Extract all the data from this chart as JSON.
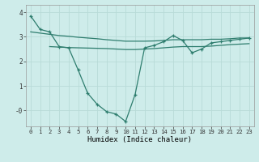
{
  "title": "",
  "xlabel": "Humidex (Indice chaleur)",
  "ylabel": "",
  "bg_color": "#ceecea",
  "grid_color": "#b8dbd8",
  "line_color": "#2e7d6e",
  "xlim": [
    -0.5,
    23.5
  ],
  "ylim": [
    -0.65,
    4.3
  ],
  "xticks": [
    0,
    1,
    2,
    3,
    4,
    5,
    6,
    7,
    8,
    9,
    10,
    11,
    12,
    13,
    14,
    15,
    16,
    17,
    18,
    19,
    20,
    21,
    22,
    23
  ],
  "yticks": [
    0,
    1,
    2,
    3,
    4
  ],
  "ytick_labels": [
    "-0",
    "1",
    "2",
    "3",
    "4"
  ],
  "line1_x": [
    0,
    1,
    2,
    3,
    4,
    5,
    6,
    7,
    8,
    9,
    10,
    11,
    12,
    13,
    14,
    15,
    16,
    17,
    18,
    19,
    20,
    21,
    22,
    23
  ],
  "line1_y": [
    3.85,
    3.3,
    3.2,
    2.6,
    2.55,
    1.65,
    0.7,
    0.25,
    -0.05,
    -0.15,
    -0.45,
    0.65,
    2.55,
    2.65,
    2.8,
    3.05,
    2.85,
    2.35,
    2.5,
    2.75,
    2.8,
    2.85,
    2.9,
    2.95
  ],
  "line2_x": [
    0,
    1,
    2,
    3,
    4,
    5,
    6,
    7,
    8,
    9,
    10,
    11,
    12,
    13,
    14,
    15,
    16,
    17,
    18,
    19,
    20,
    21,
    22,
    23
  ],
  "line2_y": [
    3.2,
    3.15,
    3.1,
    3.05,
    3.02,
    2.98,
    2.95,
    2.92,
    2.88,
    2.85,
    2.82,
    2.82,
    2.82,
    2.83,
    2.85,
    2.88,
    2.88,
    2.88,
    2.88,
    2.9,
    2.9,
    2.92,
    2.95,
    2.95
  ],
  "line3_x": [
    2,
    3,
    4,
    5,
    6,
    7,
    8,
    9,
    10,
    11,
    12,
    13,
    14,
    15,
    16,
    17,
    18,
    19,
    20,
    21,
    22,
    23
  ],
  "line3_y": [
    2.6,
    2.58,
    2.56,
    2.55,
    2.54,
    2.53,
    2.52,
    2.5,
    2.48,
    2.48,
    2.5,
    2.52,
    2.55,
    2.58,
    2.6,
    2.6,
    2.6,
    2.62,
    2.65,
    2.68,
    2.7,
    2.72
  ],
  "xlabel_fontsize": 6.5,
  "tick_fontsize": 5.2
}
